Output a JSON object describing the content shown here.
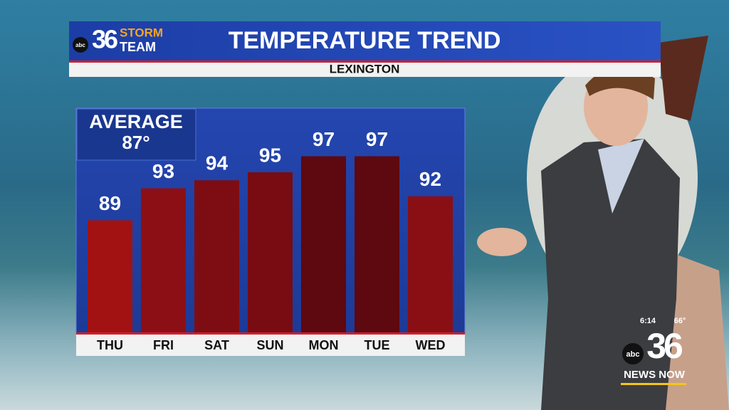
{
  "header": {
    "logo_number": "36",
    "logo_line1": "STORM",
    "logo_line2": "TEAM",
    "network": "abc"
  },
  "chart_data": {
    "type": "bar",
    "title": "TEMPERATURE TREND",
    "subtitle": "LEXINGTON",
    "annotation_label": "AVERAGE",
    "annotation_value": "87°",
    "categories": [
      "THU",
      "FRI",
      "SAT",
      "SUN",
      "MON",
      "TUE",
      "WED"
    ],
    "values": [
      89,
      93,
      94,
      95,
      97,
      97,
      92
    ],
    "colors": [
      "#a31212",
      "#8c0f15",
      "#7e0d13",
      "#780c12",
      "#5e0810",
      "#5e0810",
      "#8a0f14"
    ],
    "ylim": [
      75,
      103
    ]
  },
  "bug": {
    "time": "6:14",
    "temperature": "66°",
    "network": "abc",
    "channel": "36",
    "tagline": "NEWS NOW"
  }
}
